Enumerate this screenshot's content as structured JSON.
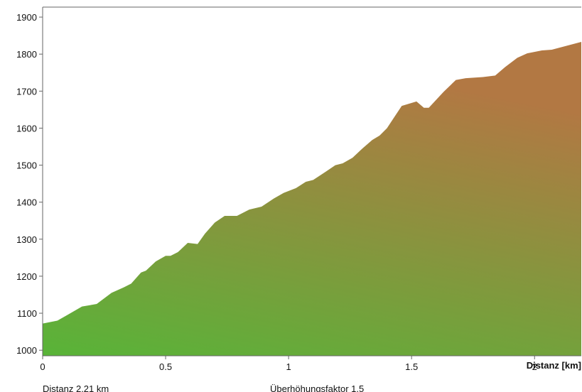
{
  "chart_data": {
    "type": "area",
    "x_label": "Distanz [km]",
    "footer_distance": "Distanz 2.21 km",
    "footer_factor": "Überhöhungsfaktor 1.5",
    "x": [
      0,
      0.06,
      0.1,
      0.16,
      0.22,
      0.28,
      0.33,
      0.36,
      0.4,
      0.42,
      0.46,
      0.5,
      0.52,
      0.55,
      0.59,
      0.63,
      0.66,
      0.7,
      0.74,
      0.79,
      0.84,
      0.89,
      0.94,
      0.98,
      1.03,
      1.07,
      1.1,
      1.15,
      1.19,
      1.22,
      1.26,
      1.3,
      1.34,
      1.37,
      1.4,
      1.43,
      1.46,
      1.52,
      1.55,
      1.57,
      1.63,
      1.68,
      1.72,
      1.79,
      1.84,
      1.88,
      1.93,
      1.97,
      2.03,
      2.07,
      2.19
    ],
    "values": [
      1072,
      1080,
      1095,
      1118,
      1125,
      1155,
      1170,
      1180,
      1210,
      1215,
      1240,
      1255,
      1255,
      1265,
      1290,
      1287,
      1315,
      1345,
      1363,
      1363,
      1380,
      1388,
      1410,
      1425,
      1438,
      1455,
      1460,
      1482,
      1500,
      1505,
      1520,
      1545,
      1568,
      1580,
      1600,
      1630,
      1660,
      1672,
      1655,
      1655,
      1698,
      1730,
      1735,
      1738,
      1742,
      1765,
      1790,
      1802,
      1810,
      1812,
      1833
    ],
    "color_bottom": "#58b438",
    "color_top": "#b27843",
    "xlim": [
      0,
      2.19
    ],
    "xticks": [
      0,
      0.5,
      1,
      1.5,
      2
    ],
    "ylim": [
      985,
      1927
    ],
    "yticks": [
      1000,
      1100,
      1200,
      1300,
      1400,
      1500,
      1600,
      1700,
      1800,
      1900
    ]
  }
}
